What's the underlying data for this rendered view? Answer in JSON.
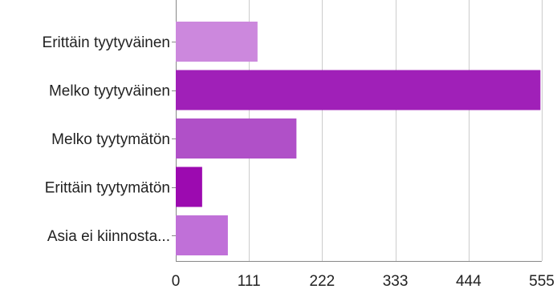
{
  "chart_data": {
    "type": "bar",
    "orientation": "horizontal",
    "categories": [
      "Erittäin tyytyväinen",
      "Melko tyytyväinen",
      "Melko tyytymätön",
      "Erittäin tyytymätön",
      "Asia ei kiinnosta..."
    ],
    "values": [
      124,
      553,
      183,
      40,
      79
    ],
    "bar_colors": [
      "#cc88dd",
      "#a020b8",
      "#b050c8",
      "#9c0ab0",
      "#c070d8"
    ],
    "xticks": [
      0,
      111,
      222,
      333,
      444,
      555
    ],
    "xlim": [
      0,
      555
    ],
    "grid": true,
    "legend": "none"
  }
}
